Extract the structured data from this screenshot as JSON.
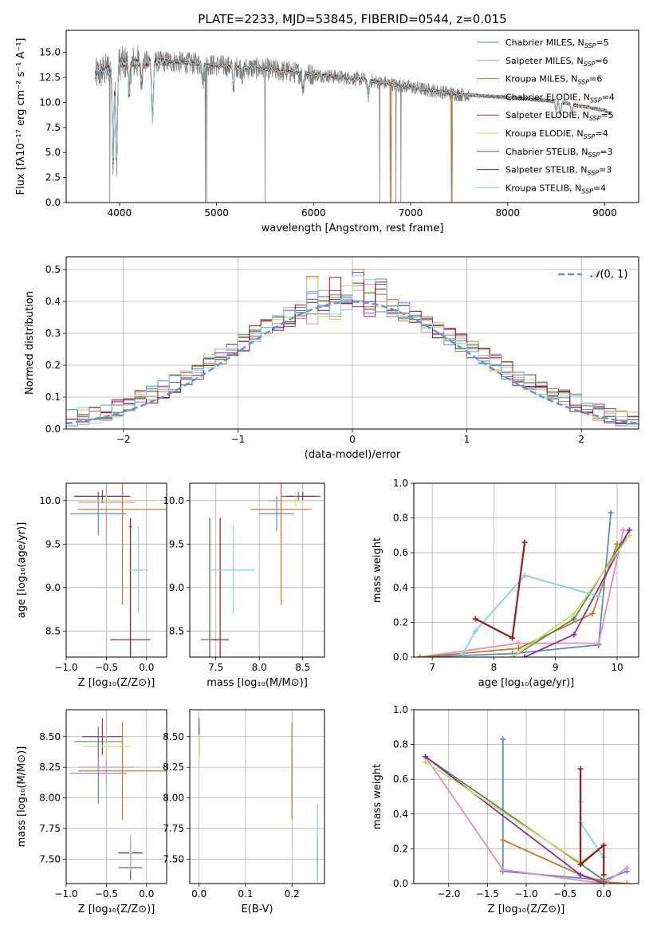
{
  "colors": {
    "chab_miles": "#5b8bd6",
    "salp_miles": "#e68ac0",
    "krou_miles": "#d4761e",
    "chab_elodie": "#5a8a5a",
    "salp_elodie": "#8b2fa8",
    "krou_elodie": "#c9df5a",
    "chab_stelib": "#5a5a5a",
    "salp_stelib": "#a01818",
    "krou_stelib": "#7fd6dc",
    "data": "#808080",
    "gauss": "#6495d6",
    "grid": "#b0b0b0"
  },
  "legend": [
    {
      "key": "chab_miles",
      "main": "Chabrier MILES, N",
      "sub": "SSP",
      "tail": "=5"
    },
    {
      "key": "salp_miles",
      "main": "Salpeter MILES, N",
      "sub": "SSP",
      "tail": "=6"
    },
    {
      "key": "krou_miles",
      "main": "Kroupa MILES, N",
      "sub": "SSP",
      "tail": "=6"
    },
    {
      "key": "chab_elodie",
      "main": "Chabrier ELODIE, N",
      "sub": "SSP",
      "tail": "=4"
    },
    {
      "key": "salp_elodie",
      "main": "Salpeter ELODIE, N",
      "sub": "SSP",
      "tail": "=5"
    },
    {
      "key": "krou_elodie",
      "main": "Kroupa ELODIE, N",
      "sub": "SSP",
      "tail": "=4"
    },
    {
      "key": "chab_stelib",
      "main": "Chabrier STELIB, N",
      "sub": "SSP",
      "tail": "=3"
    },
    {
      "key": "salp_stelib",
      "main": "Salpeter STELIB, N",
      "sub": "SSP",
      "tail": "=3"
    },
    {
      "key": "krou_stelib",
      "main": "Kroupa STELIB, N",
      "sub": "SSP",
      "tail": "=4"
    }
  ],
  "chart_data": [
    {
      "type": "line",
      "title": "PLATE=2233, MJD=53845, FIBERID=0544, z=0.015",
      "xlabel": "wavelength [Angstrom, rest frame]",
      "ylabel": "Flux [fλ10⁻¹⁷ erg cm⁻² s⁻¹ A⁻¹]",
      "xlim": [
        3450,
        9350
      ],
      "ylim": [
        0,
        17.2
      ],
      "xticks": [
        4000,
        5000,
        6000,
        7000,
        8000,
        9000
      ],
      "yticks": [
        0.0,
        2.5,
        5.0,
        7.5,
        10.0,
        12.5,
        15.0
      ],
      "continuum": {
        "x": [
          3750,
          4000,
          4500,
          5000,
          5500,
          6000,
          6500,
          7000,
          7500,
          8000,
          8500,
          9000,
          9050
        ],
        "y": [
          12.7,
          13.9,
          14.1,
          13.7,
          13.3,
          12.8,
          12.3,
          11.5,
          10.8,
          10.5,
          10.1,
          9.2,
          8.9
        ]
      },
      "absorption_lines": [
        [
          3934,
          4.0
        ],
        [
          3969,
          3.7
        ],
        [
          4101,
          10.8
        ],
        [
          4226,
          12.0
        ],
        [
          4340,
          8.2
        ],
        [
          4861,
          12.2
        ],
        [
          5175,
          11.6
        ],
        [
          5270,
          12.5
        ],
        [
          5890,
          11.5
        ],
        [
          6563,
          10.6
        ],
        [
          8498,
          9.2
        ],
        [
          8542,
          8.8
        ],
        [
          8662,
          8.9
        ]
      ],
      "data_spikes": [
        [
          3900,
          0
        ],
        [
          4885,
          0
        ],
        [
          4900,
          0
        ],
        [
          5500,
          0
        ],
        [
          6680,
          0
        ],
        [
          6790,
          0
        ],
        [
          6850,
          0
        ],
        [
          6900,
          0
        ],
        [
          7420,
          0
        ]
      ],
      "model_spikes": [
        [
          6800,
          0
        ],
        [
          7430,
          0
        ]
      ]
    },
    {
      "type": "step",
      "xlabel": "(data-model)/error",
      "ylabel": "Normed distribution",
      "xlim": [
        -2.5,
        2.5
      ],
      "ylim": [
        0,
        0.54
      ],
      "xticks": [
        -2,
        -1,
        0,
        1,
        2
      ],
      "yticks": [
        0.0,
        0.1,
        0.2,
        0.3,
        0.4,
        0.5
      ],
      "bin_width": 0.1,
      "gaussian_label": "N(0,1)",
      "gaussian_label_parts": {
        "script": "𝒩",
        "args": "(0, 1)"
      }
    },
    {
      "type": "errorbar",
      "xlabel": "Z [log₁₀(Z/Z⊙)]",
      "ylabel": "age  [log₁₀(age/yr)]",
      "xlim": [
        -1.0,
        0.25
      ],
      "ylim": [
        8.2,
        10.2
      ],
      "xticks": [
        -1.0,
        -0.5,
        0.0
      ],
      "yticks": [
        8.5,
        9.0,
        9.5,
        10.0
      ],
      "points": [
        {
          "key": "chab_miles",
          "x": -0.6,
          "xerr": 0.35,
          "y": 9.85,
          "yerr": 0.25
        },
        {
          "key": "salp_miles",
          "x": -0.5,
          "xerr": 0.35,
          "y": 9.98,
          "yerr": 0.5
        },
        {
          "key": "krou_miles",
          "x": -0.3,
          "xerr": 0.55,
          "y": 9.9,
          "yerr": 1.1
        },
        {
          "key": "chab_elodie",
          "x": -0.6,
          "xerr": 0.3,
          "y": 10.05,
          "yerr": 0.05
        },
        {
          "key": "salp_elodie",
          "x": -0.55,
          "xerr": 0.35,
          "y": 10.05,
          "yerr": 0.07
        },
        {
          "key": "krou_elodie",
          "x": -0.5,
          "xerr": 0.3,
          "y": 10.0,
          "yerr": 0.07
        },
        {
          "key": "chab_stelib",
          "x": -0.2,
          "xerr": 0.02,
          "y": 9.7,
          "yerr": 0.0
        },
        {
          "key": "salp_stelib",
          "x": -0.2,
          "xerr": 0.25,
          "y": 8.4,
          "yerr": 1.4
        },
        {
          "key": "krou_stelib",
          "x": -0.1,
          "xerr": 0.12,
          "y": 9.2,
          "yerr": 0.5
        }
      ]
    },
    {
      "type": "errorbar",
      "xlabel": "mass [log₁₀(M/M⊙)]",
      "xlim": [
        7.2,
        8.75
      ],
      "ylim": [
        8.2,
        10.2
      ],
      "xticks": [
        7.5,
        8.0,
        8.5
      ],
      "yticks": [
        8.5,
        9.0,
        9.5,
        10.0
      ],
      "points": [
        {
          "key": "chab_miles",
          "x": 8.2,
          "xerr": 0.2,
          "y": 9.85,
          "yerr": 0.2
        },
        {
          "key": "salp_miles",
          "x": 8.25,
          "xerr": 0.15,
          "y": 10.0,
          "yerr": 0.5
        },
        {
          "key": "krou_miles",
          "x": 8.25,
          "xerr": 0.35,
          "y": 9.9,
          "yerr": 1.1
        },
        {
          "key": "chab_elodie",
          "x": 8.45,
          "xerr": 0.2,
          "y": 10.05,
          "yerr": 0.05
        },
        {
          "key": "salp_elodie",
          "x": 8.5,
          "xerr": 0.2,
          "y": 10.05,
          "yerr": 0.05
        },
        {
          "key": "krou_elodie",
          "x": 8.42,
          "xerr": 0.15,
          "y": 10.0,
          "yerr": 0.07
        },
        {
          "key": "chab_stelib",
          "x": 7.43,
          "xerr": 0.1,
          "y": 8.4,
          "yerr": 1.4
        },
        {
          "key": "salp_stelib",
          "x": 7.55,
          "xerr": 0.1,
          "y": 8.4,
          "yerr": 1.4
        },
        {
          "key": "krou_stelib",
          "x": 7.7,
          "xerr": 0.25,
          "y": 9.2,
          "yerr": 0.5
        }
      ]
    },
    {
      "type": "line",
      "xlabel": "age  [log₁₀(age/yr)]",
      "ylabel": "mass weight",
      "xlim": [
        6.7,
        10.35
      ],
      "ylim": [
        0,
        1.0
      ],
      "xticks": [
        7,
        8,
        9,
        10
      ],
      "yticks": [
        0.0,
        0.2,
        0.4,
        0.6,
        0.8,
        1.0
      ],
      "series": [
        {
          "key": "chab_miles",
          "x": [
            6.8,
            8.3,
            9.7,
            9.9
          ],
          "y": [
            0.0,
            0.02,
            0.07,
            0.83
          ]
        },
        {
          "key": "salp_miles",
          "x": [
            6.8,
            8.4,
            9.7,
            10.1
          ],
          "y": [
            0.0,
            0.08,
            0.08,
            0.73
          ]
        },
        {
          "key": "krou_miles",
          "x": [
            6.8,
            8.4,
            9.6,
            10.0
          ],
          "y": [
            0.0,
            0.05,
            0.25,
            0.65
          ]
        },
        {
          "key": "chab_elodie",
          "x": [
            8.3,
            9.3,
            10.2
          ],
          "y": [
            0.0,
            0.22,
            0.73
          ]
        },
        {
          "key": "salp_elodie",
          "x": [
            8.5,
            9.3,
            10.2
          ],
          "y": [
            0.0,
            0.13,
            0.73
          ]
        },
        {
          "key": "krou_elodie",
          "x": [
            8.3,
            9.3,
            10.2
          ],
          "y": [
            0.0,
            0.25,
            0.7
          ]
        },
        {
          "key": "krou_stelib",
          "x": [
            7.5,
            7.7,
            8.5,
            9.7
          ],
          "y": [
            0.02,
            0.15,
            0.47,
            0.35
          ]
        },
        {
          "key": "salp_stelib",
          "x": [
            7.7,
            8.3,
            8.5
          ],
          "y": [
            0.22,
            0.11,
            0.66
          ]
        }
      ]
    },
    {
      "type": "errorbar",
      "xlabel": "Z [log₁₀(Z/Z⊙)]",
      "ylabel": "mass [log₁₀(M/M⊙)]",
      "xlim": [
        -1.0,
        0.25
      ],
      "ylim": [
        7.3,
        8.72
      ],
      "xticks": [
        -1.0,
        -0.5,
        0.0
      ],
      "yticks": [
        7.5,
        7.75,
        8.0,
        8.25,
        8.5
      ],
      "points": [
        {
          "key": "chab_miles",
          "x": -0.6,
          "xerr": 0.35,
          "y": 8.2,
          "yerr": 0.25
        },
        {
          "key": "salp_miles",
          "x": -0.5,
          "xerr": 0.35,
          "y": 8.25,
          "yerr": 0.15
        },
        {
          "key": "krou_miles",
          "x": -0.3,
          "xerr": 0.55,
          "y": 8.22,
          "yerr": 0.4
        },
        {
          "key": "chab_elodie",
          "x": -0.6,
          "xerr": 0.3,
          "y": 8.46,
          "yerr": 0.12
        },
        {
          "key": "salp_elodie",
          "x": -0.55,
          "xerr": 0.25,
          "y": 8.5,
          "yerr": 0.15
        },
        {
          "key": "krou_elodie",
          "x": -0.5,
          "xerr": 0.3,
          "y": 8.42,
          "yerr": 0.1
        },
        {
          "key": "chab_stelib",
          "x": -0.2,
          "xerr": 0.15,
          "y": 7.43,
          "yerr": 0.1
        },
        {
          "key": "salp_stelib",
          "x": -0.2,
          "xerr": 0.15,
          "y": 7.55,
          "yerr": 0.1
        },
        {
          "key": "krou_stelib",
          "x": -0.2,
          "xerr": 0.02,
          "y": 7.55,
          "yerr": 0.15
        }
      ]
    },
    {
      "type": "errorbar",
      "xlabel": "E(B-V)",
      "xlim": [
        -0.02,
        0.27
      ],
      "ylim": [
        7.3,
        8.72
      ],
      "xticks": [
        0.0,
        0.1,
        0.2
      ],
      "yticks": [
        7.5,
        7.75,
        8.0,
        8.25,
        8.5
      ],
      "points": [
        {
          "key": "chab_miles",
          "x": 0.2,
          "xerr": 0.0,
          "y": 8.2,
          "yerr": 0.2
        },
        {
          "key": "salp_miles",
          "x": 0.2,
          "xerr": 0.0,
          "y": 8.25,
          "yerr": 0.15
        },
        {
          "key": "krou_miles",
          "x": 0.2,
          "xerr": 0.0,
          "y": 8.22,
          "yerr": 0.4
        },
        {
          "key": "chab_elodie",
          "x": 0.0,
          "xerr": 0.0,
          "y": 8.46,
          "yerr": 0.12
        },
        {
          "key": "salp_elodie",
          "x": 0.0,
          "xerr": 0.0,
          "y": 8.5,
          "yerr": 0.15
        },
        {
          "key": "krou_elodie",
          "x": 0.0,
          "xerr": 0.0,
          "y": 8.42,
          "yerr": 0.1
        },
        {
          "key": "chab_stelib",
          "x": 0.255,
          "xerr": 0.0,
          "y": 7.43,
          "yerr": 0.1
        },
        {
          "key": "salp_stelib",
          "x": 0.255,
          "xerr": 0.0,
          "y": 7.55,
          "yerr": 0.12
        },
        {
          "key": "krou_stelib",
          "x": 0.255,
          "xerr": 0.0,
          "y": 7.6,
          "yerr": 0.35
        }
      ]
    },
    {
      "type": "line",
      "xlabel": "Z [log₁₀(Z/Z⊙)]",
      "ylabel": "mass weight",
      "xlim": [
        -2.45,
        0.45
      ],
      "ylim": [
        0,
        1.0
      ],
      "xticks": [
        -2.0,
        -1.5,
        -1.0,
        -0.5,
        0.0
      ],
      "yticks": [
        0.0,
        0.2,
        0.4,
        0.6,
        0.8,
        1.0
      ],
      "series": [
        {
          "key": "chab_miles",
          "x": [
            -1.3,
            -1.3,
            0.0,
            0.3
          ],
          "y": [
            0.83,
            0.07,
            0.02,
            0.07
          ]
        },
        {
          "key": "salp_miles",
          "x": [
            -2.3,
            -1.3,
            0.0,
            0.3
          ],
          "y": [
            0.73,
            0.08,
            0.0,
            0.09
          ]
        },
        {
          "key": "krou_miles",
          "x": [
            -1.3,
            -0.3,
            0.0,
            0.3
          ],
          "y": [
            0.25,
            0.05,
            0.01,
            0.0
          ]
        },
        {
          "key": "chab_elodie",
          "x": [
            -2.3,
            0.0
          ],
          "y": [
            0.73,
            0.02
          ]
        },
        {
          "key": "salp_elodie",
          "x": [
            -2.3,
            -0.3,
            0.0
          ],
          "y": [
            0.73,
            0.05,
            0.0
          ]
        },
        {
          "key": "krou_elodie",
          "x": [
            -2.3,
            -0.3,
            0.0
          ],
          "y": [
            0.7,
            0.12,
            0.22
          ]
        },
        {
          "key": "krou_stelib",
          "x": [
            -0.3,
            -0.3,
            0.0
          ],
          "y": [
            0.47,
            0.35,
            0.15
          ]
        },
        {
          "key": "salp_stelib",
          "x": [
            -0.3,
            -0.3,
            0.0,
            0.0
          ],
          "y": [
            0.66,
            0.11,
            0.22,
            0.05
          ]
        }
      ]
    }
  ]
}
